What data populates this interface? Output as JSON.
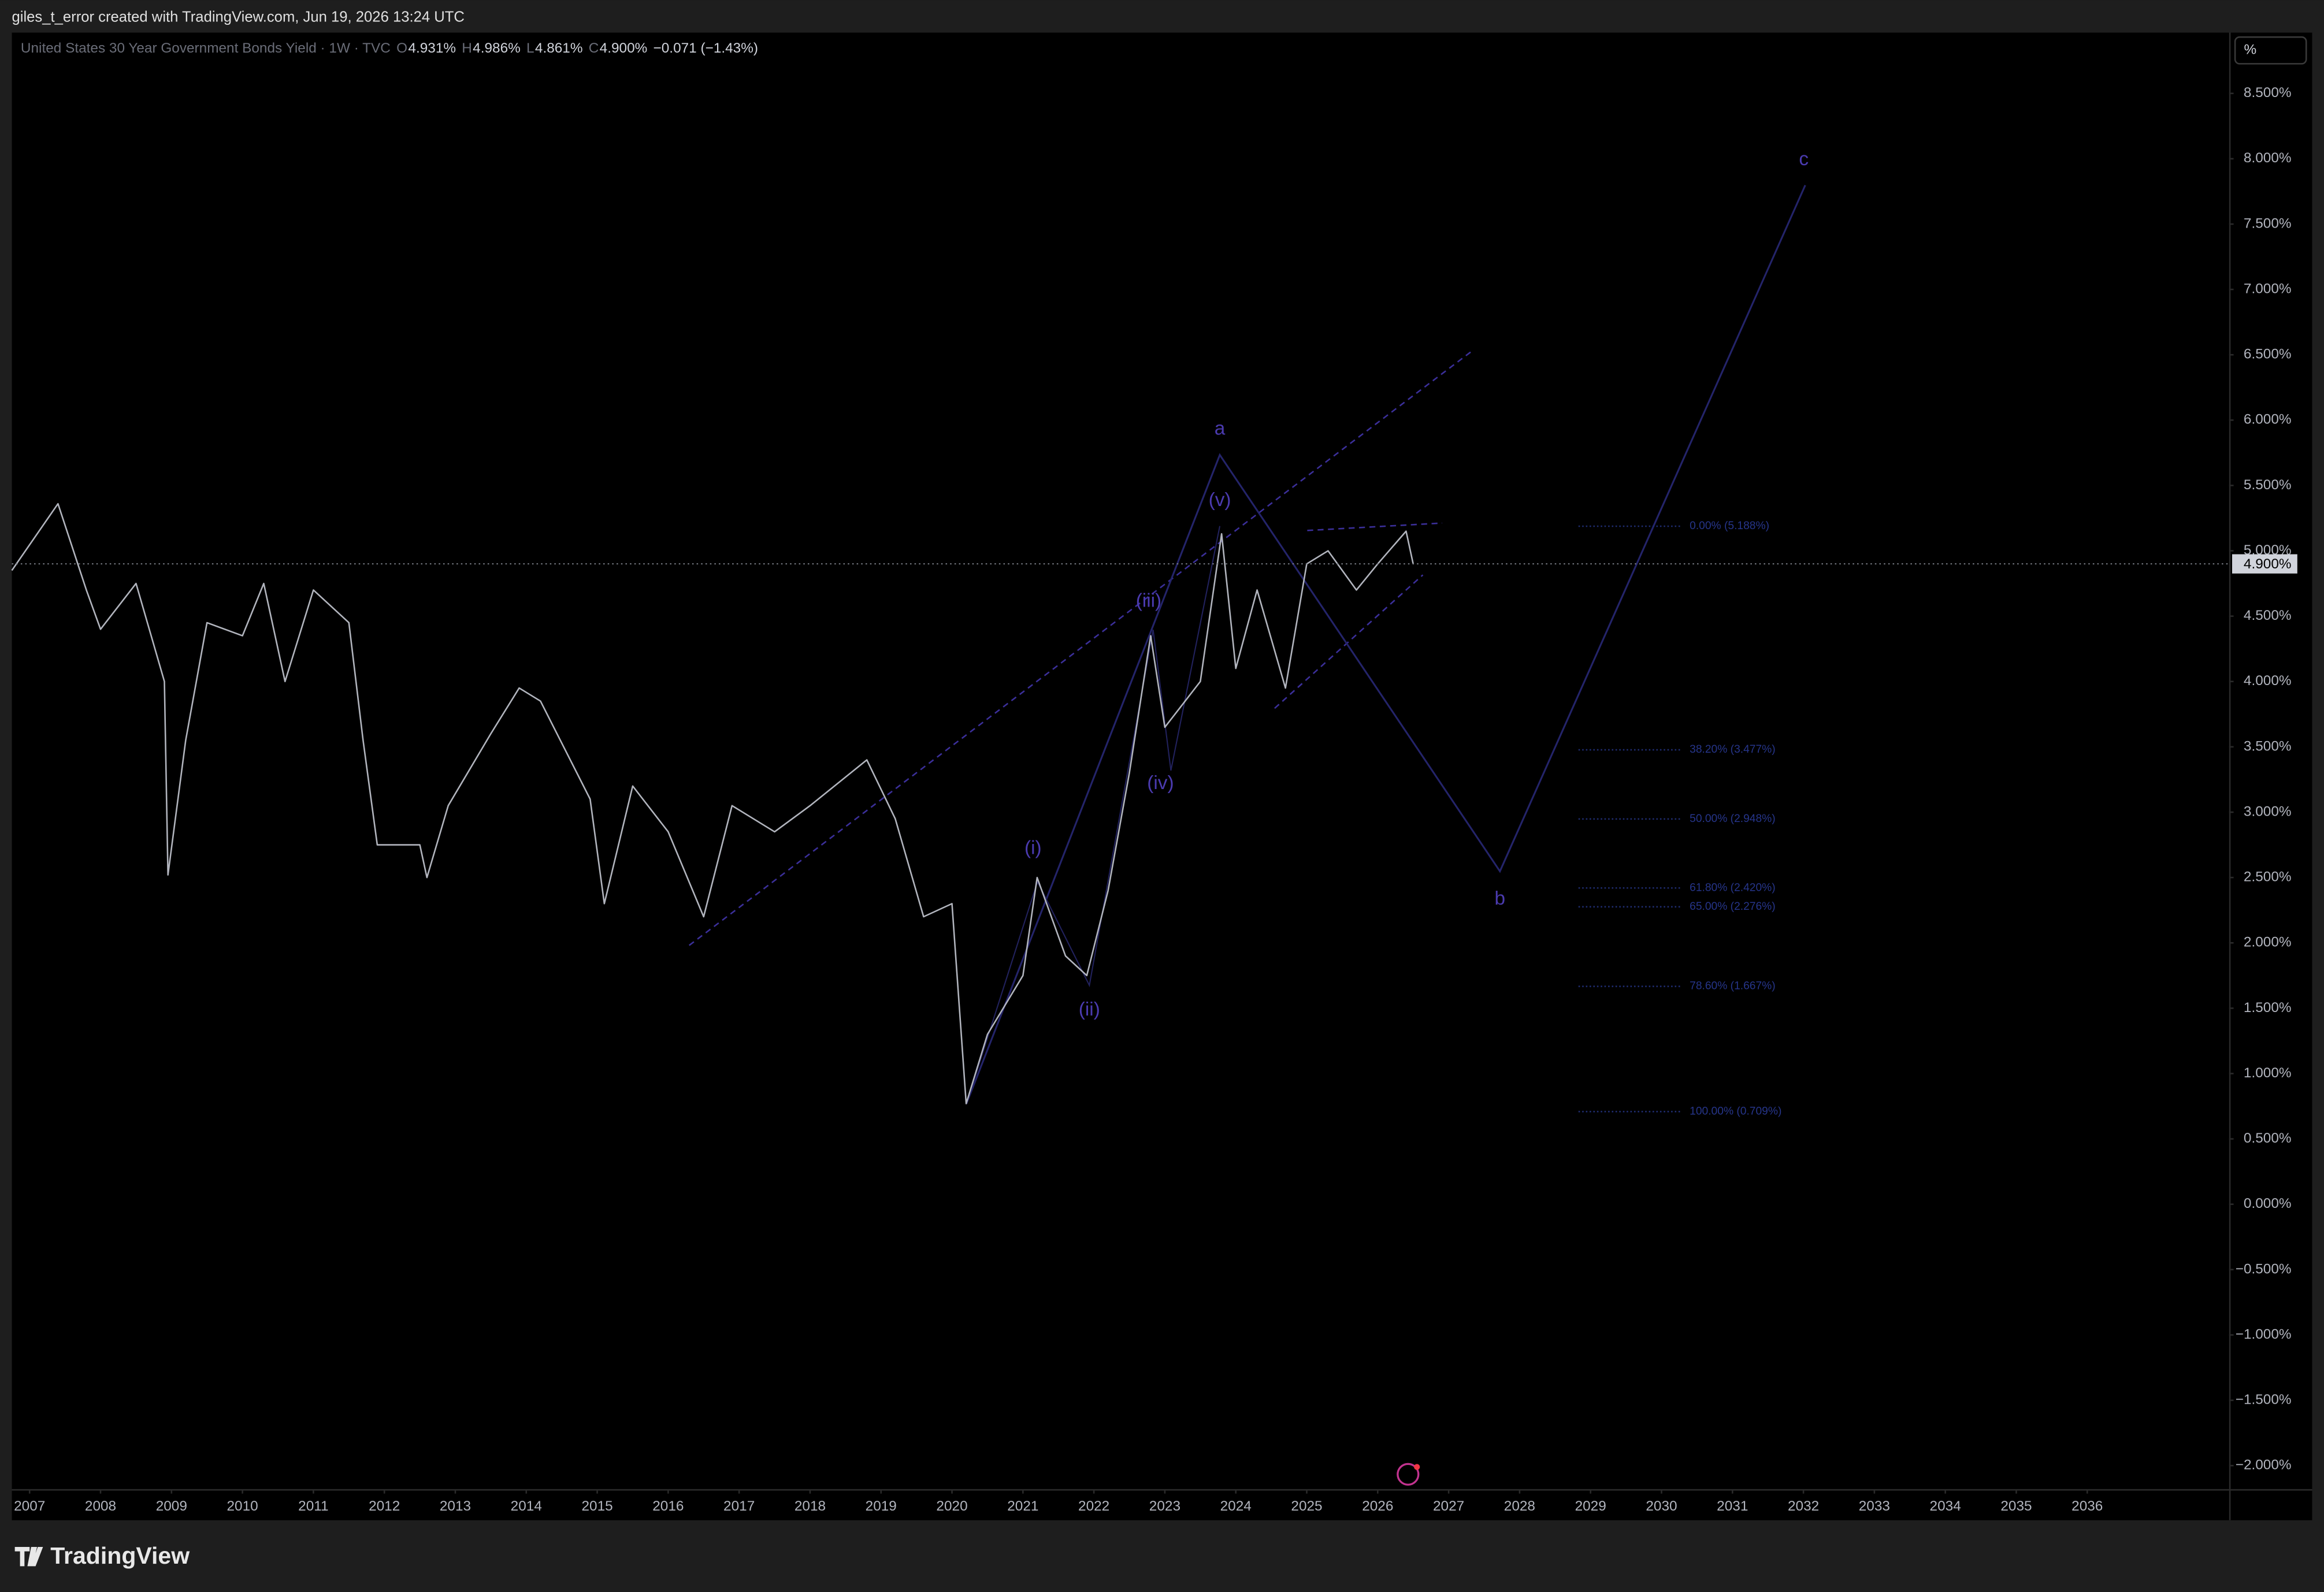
{
  "header": {
    "credit": "giles_t_error created with TradingView.com, Jun 19, 2026 13:24 UTC",
    "logo": "TradingView",
    "unit_button": "%"
  },
  "chart_data": {
    "type": "line",
    "title": "United States 30 Year Government Bonds Yield · 1W · TVC",
    "ohlc": [
      {
        "key": "O",
        "text": "4.931%"
      },
      {
        "key": "H",
        "text": "4.986%"
      },
      {
        "key": "L",
        "text": "4.861%"
      },
      {
        "key": "C",
        "text": "4.900%"
      }
    ],
    "change": "−0.071 (−1.43%)",
    "series": [
      {
        "name": "United States 30 Year Government Bonds Yield",
        "color": "#b2b5be",
        "x": [
          2006.75,
          2007.4,
          2007.8,
          2008.0,
          2008.5,
          2008.9,
          2008.95,
          2009.2,
          2009.5,
          2010.0,
          2010.3,
          2010.6,
          2011.0,
          2011.5,
          2011.7,
          2011.9,
          2012.5,
          2012.6,
          2012.9,
          2013.5,
          2013.9,
          2014.2,
          2014.9,
          2015.1,
          2015.5,
          2016.0,
          2016.5,
          2016.9,
          2017.5,
          2018.0,
          2018.8,
          2019.2,
          2019.6,
          2020.0,
          2020.2,
          2020.5,
          2021.0,
          2021.2,
          2021.6,
          2021.9,
          2022.2,
          2022.5,
          2022.8,
          2023.0,
          2023.5,
          2023.8,
          2024.0,
          2024.3,
          2024.7,
          2025.0,
          2025.3,
          2025.7,
          2026.0,
          2026.4,
          2026.5
        ],
        "values": [
          4.85,
          5.36,
          4.7,
          4.4,
          4.75,
          4.0,
          2.52,
          3.55,
          4.45,
          4.35,
          4.75,
          4.0,
          4.7,
          4.45,
          3.55,
          2.75,
          2.75,
          2.5,
          3.05,
          3.6,
          3.95,
          3.85,
          3.1,
          2.3,
          3.2,
          2.85,
          2.2,
          3.05,
          2.85,
          3.05,
          3.4,
          2.95,
          2.2,
          2.3,
          0.77,
          1.3,
          1.75,
          2.5,
          1.9,
          1.75,
          2.4,
          3.3,
          4.35,
          3.65,
          4.0,
          5.13,
          4.1,
          4.7,
          3.95,
          4.9,
          5.0,
          4.7,
          4.9,
          5.15,
          4.9
        ]
      }
    ],
    "last_price": {
      "value": 4.9,
      "label": "4.900%"
    },
    "fib_levels": [
      {
        "value": 5.188,
        "label": "0.00% (5.188%)"
      },
      {
        "value": 3.477,
        "label": "38.20% (3.477%)"
      },
      {
        "value": 2.948,
        "label": "50.00% (2.948%)"
      },
      {
        "value": 2.42,
        "label": "61.80% (2.420%)"
      },
      {
        "value": 2.276,
        "label": "65.00% (2.276%)"
      },
      {
        "value": 1.667,
        "label": "78.60% (1.667%)"
      },
      {
        "value": 0.709,
        "label": "100.00% (0.709%)"
      }
    ],
    "wave_labels": [
      "a",
      "b",
      "c",
      "(i)",
      "(ii)",
      "(iii)",
      "(iv)",
      "(v)"
    ],
    "xlim": [
      2006.75,
      2038.0
    ],
    "ylim": [
      -2.18,
      8.965
    ],
    "xticks": [
      2007,
      2008,
      2009,
      2010,
      2011,
      2012,
      2013,
      2014,
      2015,
      2016,
      2017,
      2018,
      2019,
      2020,
      2021,
      2022,
      2023,
      2024,
      2025,
      2026,
      2027,
      2028,
      2029,
      2030,
      2031,
      2032,
      2033,
      2034,
      2035,
      2036
    ],
    "yticks": [
      {
        "value": 8.5,
        "label": "8.500%"
      },
      {
        "value": 8.0,
        "label": "8.000%"
      },
      {
        "value": 7.5,
        "label": "7.500%"
      },
      {
        "value": 7.0,
        "label": "7.000%"
      },
      {
        "value": 6.5,
        "label": "6.500%"
      },
      {
        "value": 6.0,
        "label": "6.000%"
      },
      {
        "value": 5.5,
        "label": "5.500%"
      },
      {
        "value": 5.0,
        "label": "5.000%"
      },
      {
        "value": 4.5,
        "label": "4.500%"
      },
      {
        "value": 4.0,
        "label": "4.000%"
      },
      {
        "value": 3.5,
        "label": "3.500%"
      },
      {
        "value": 3.0,
        "label": "3.000%"
      },
      {
        "value": 2.5,
        "label": "2.500%"
      },
      {
        "value": 2.0,
        "label": "2.000%"
      },
      {
        "value": 1.5,
        "label": "1.500%"
      },
      {
        "value": 1.0,
        "label": "1.000%"
      },
      {
        "value": 0.5,
        "label": "0.500%"
      },
      {
        "value": 0,
        "label": "0.000%"
      },
      {
        "value": -0.5,
        "label": "−0.500%"
      },
      {
        "value": -1.0,
        "label": "−1.000%"
      },
      {
        "value": -1.5,
        "label": "−1.500%"
      },
      {
        "value": -2.0,
        "label": "−2.000%"
      }
    ],
    "grid": false
  }
}
